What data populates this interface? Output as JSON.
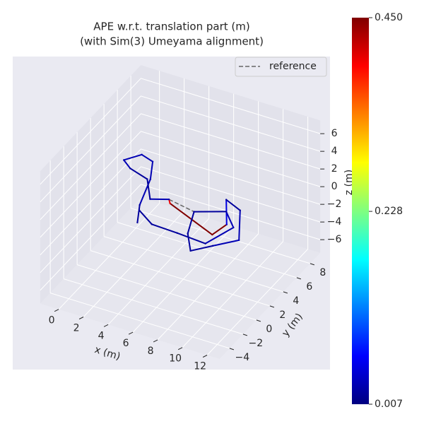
{
  "chart_data": {
    "type": "trajectory3d",
    "title": "APE w.r.t. translation part (m)",
    "subtitle": "(with Sim(3) Umeyama alignment)",
    "xlabel": "x (m)",
    "ylabel": "y (m)",
    "zlabel": "z (m)",
    "xlim": [
      -1.5,
      13
    ],
    "ylim": [
      -5.5,
      9.5
    ],
    "zlim": [
      -7.5,
      7.5
    ],
    "xticks": [
      0,
      2,
      4,
      6,
      8,
      10,
      12
    ],
    "yticks": [
      {
        "value": -4,
        "label": "−4"
      },
      {
        "value": -2,
        "label": "−2"
      },
      0,
      2,
      4,
      6,
      8
    ],
    "zticks": [
      {
        "value": -6,
        "label": "−6"
      },
      {
        "value": -4,
        "label": "−4"
      },
      {
        "value": -2,
        "label": "−2"
      },
      0,
      2,
      4,
      6
    ],
    "grid": true,
    "legend": "upper right",
    "colormap": "jet",
    "clim": [
      0.007,
      0.45
    ],
    "cticks": [
      0.007,
      0.228,
      {
        "value": 0.45,
        "label": "0.450"
      }
    ],
    "series": [
      {
        "name": "reference",
        "color": "#666666",
        "style": "dashed",
        "x": [
          4.3,
          6.6,
          8.6
        ],
        "y": [
          3.0,
          2.5,
          3.6
        ],
        "z": [
          0,
          0,
          0
        ]
      },
      {
        "x": [
          3.7,
          2.8,
          2.2,
          1.3,
          0.2,
          -0.6,
          0.3,
          2.0,
          3.1,
          4.3,
          4.6,
          9.1,
          9.4,
          7.9,
          9.4,
          11.1,
          9.8,
          8.7,
          7.5,
          6.6,
          8.6,
          10.0,
          9.2,
          6.8,
          4.7,
          3.1
        ],
        "y": [
          -0.6,
          1.4,
          4.1,
          6.1,
          6.5,
          5.3,
          4.6,
          4.0,
          2.4,
          3.0,
          2.6,
          0.6,
          2.2,
          4.9,
          4.2,
          0.9,
          -0.6,
          -1.9,
          -0.1,
          2.5,
          3.6,
          2.1,
          -0.6,
          -0.4,
          -0.3,
          0.8
        ],
        "z": [
          0,
          0,
          0.5,
          0.5,
          0.5,
          0.5,
          0.5,
          0.5,
          0,
          0,
          0,
          0,
          0,
          0,
          0,
          0,
          0,
          0,
          0,
          0,
          0,
          0,
          0,
          0,
          0,
          0
        ],
        "error": [
          0.02,
          0.02,
          0.03,
          0.03,
          0.03,
          0.03,
          0.02,
          0.02,
          0.02,
          0.03,
          0.4,
          0.45,
          0.05,
          0.02,
          0.02,
          0.03,
          0.02,
          0.02,
          0.02,
          0.02,
          0.02,
          0.03,
          0.02,
          0.02,
          0.02,
          0.02
        ]
      }
    ]
  }
}
